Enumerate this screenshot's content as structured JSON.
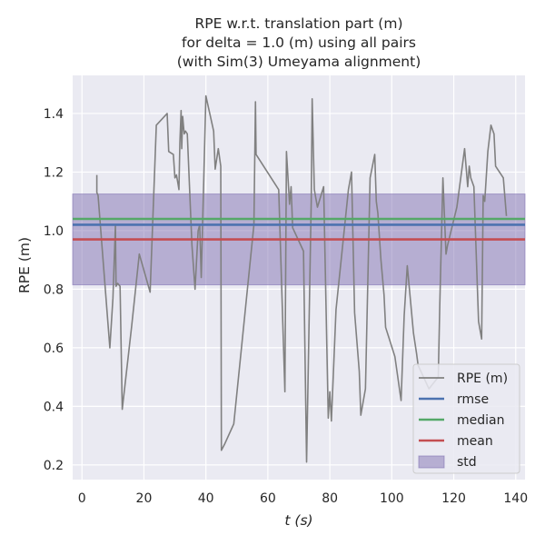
{
  "chart_data": {
    "type": "line",
    "title_lines": [
      "RPE w.r.t. translation part (m)",
      "for delta = 1.0 (m) using all pairs",
      "(with Sim(3) Umeyama alignment)"
    ],
    "xlabel": "t (s)",
    "ylabel": "RPE (m)",
    "xlim": [
      -3,
      143
    ],
    "ylim": [
      0.15,
      1.53
    ],
    "xticks": [
      0,
      20,
      40,
      60,
      80,
      100,
      120,
      140
    ],
    "yticks": [
      0.2,
      0.4,
      0.6,
      0.8,
      1.0,
      1.2,
      1.4
    ],
    "ytick_labels": [
      "0.2",
      "0.4",
      "0.6",
      "0.8",
      "1.0",
      "1.2",
      "1.4"
    ],
    "grid": true,
    "legend_position": "lower-right",
    "series": [
      {
        "name": "RPE (m)",
        "kind": "line",
        "color": "#808080",
        "x": [
          4.8,
          4.8,
          5.2,
          9.0,
          10.0,
          10.8,
          11.0,
          11.5,
          12.3,
          13.0,
          16.0,
          18.5,
          22.0,
          24.0,
          27.5,
          28.0,
          29.5,
          30.0,
          30.5,
          31.0,
          31.3,
          31.6,
          32.0,
          32.2,
          32.5,
          33.0,
          33.4,
          34.0,
          35.5,
          36.5,
          37.5,
          38.0,
          38.5,
          40.0,
          42.5,
          43.0,
          44.0,
          44.8,
          45.0,
          46.0,
          49.0,
          55.5,
          56.0,
          56.2,
          63.5,
          65.5,
          66.0,
          67.0,
          67.5,
          68.0,
          71.5,
          72.5,
          74.0,
          74.3,
          75.0,
          76.0,
          78.0,
          79.5,
          80.0,
          80.5,
          82.0,
          86.0,
          87.0,
          88.0,
          89.5,
          90.0,
          91.5,
          93.0,
          94.5,
          95.0,
          95.5,
          96.5,
          97.5,
          98.0,
          101.0,
          103.0,
          104.0,
          105.0,
          107.0,
          108.0,
          108.5,
          112.0,
          115.0,
          115.5,
          116.5,
          117.5,
          118.0,
          121.0,
          123.5,
          124.5,
          125.0,
          125.5,
          126.5,
          128.0,
          129.0,
          129.5,
          130.0,
          131.0,
          132.0,
          133.0,
          133.5,
          136.0,
          137.0
        ],
        "y": [
          1.19,
          1.13,
          1.12,
          0.6,
          0.77,
          1.02,
          0.81,
          0.82,
          0.81,
          0.39,
          0.67,
          0.92,
          0.79,
          1.36,
          1.4,
          1.27,
          1.26,
          1.18,
          1.19,
          1.16,
          1.14,
          1.3,
          1.41,
          1.28,
          1.39,
          1.33,
          1.34,
          1.33,
          0.95,
          0.8,
          1.0,
          1.02,
          0.84,
          1.46,
          1.34,
          1.21,
          1.28,
          1.22,
          0.25,
          0.27,
          0.34,
          1.02,
          1.44,
          1.26,
          1.14,
          0.45,
          1.27,
          1.09,
          1.15,
          1.01,
          0.93,
          0.21,
          1.1,
          1.45,
          1.14,
          1.08,
          1.15,
          0.36,
          0.45,
          0.35,
          0.73,
          1.14,
          1.2,
          0.72,
          0.52,
          0.37,
          0.46,
          1.18,
          1.26,
          1.1,
          1.06,
          0.9,
          0.78,
          0.67,
          0.57,
          0.42,
          0.71,
          0.88,
          0.65,
          0.58,
          0.54,
          0.46,
          0.5,
          0.75,
          1.18,
          0.92,
          0.95,
          1.08,
          1.28,
          1.15,
          1.22,
          1.18,
          1.15,
          0.69,
          0.63,
          1.12,
          1.1,
          1.27,
          1.36,
          1.33,
          1.22,
          1.18,
          1.05
        ]
      },
      {
        "name": "rmse",
        "kind": "hline",
        "value": 1.02,
        "color": "#4c72b0"
      },
      {
        "name": "median",
        "kind": "hline",
        "value": 1.04,
        "color": "#55a868"
      },
      {
        "name": "mean",
        "kind": "hline",
        "value": 0.97,
        "color": "#c44e52"
      },
      {
        "name": "std",
        "kind": "band",
        "low": 0.815,
        "high": 1.125,
        "color": "#8172b2"
      }
    ]
  }
}
